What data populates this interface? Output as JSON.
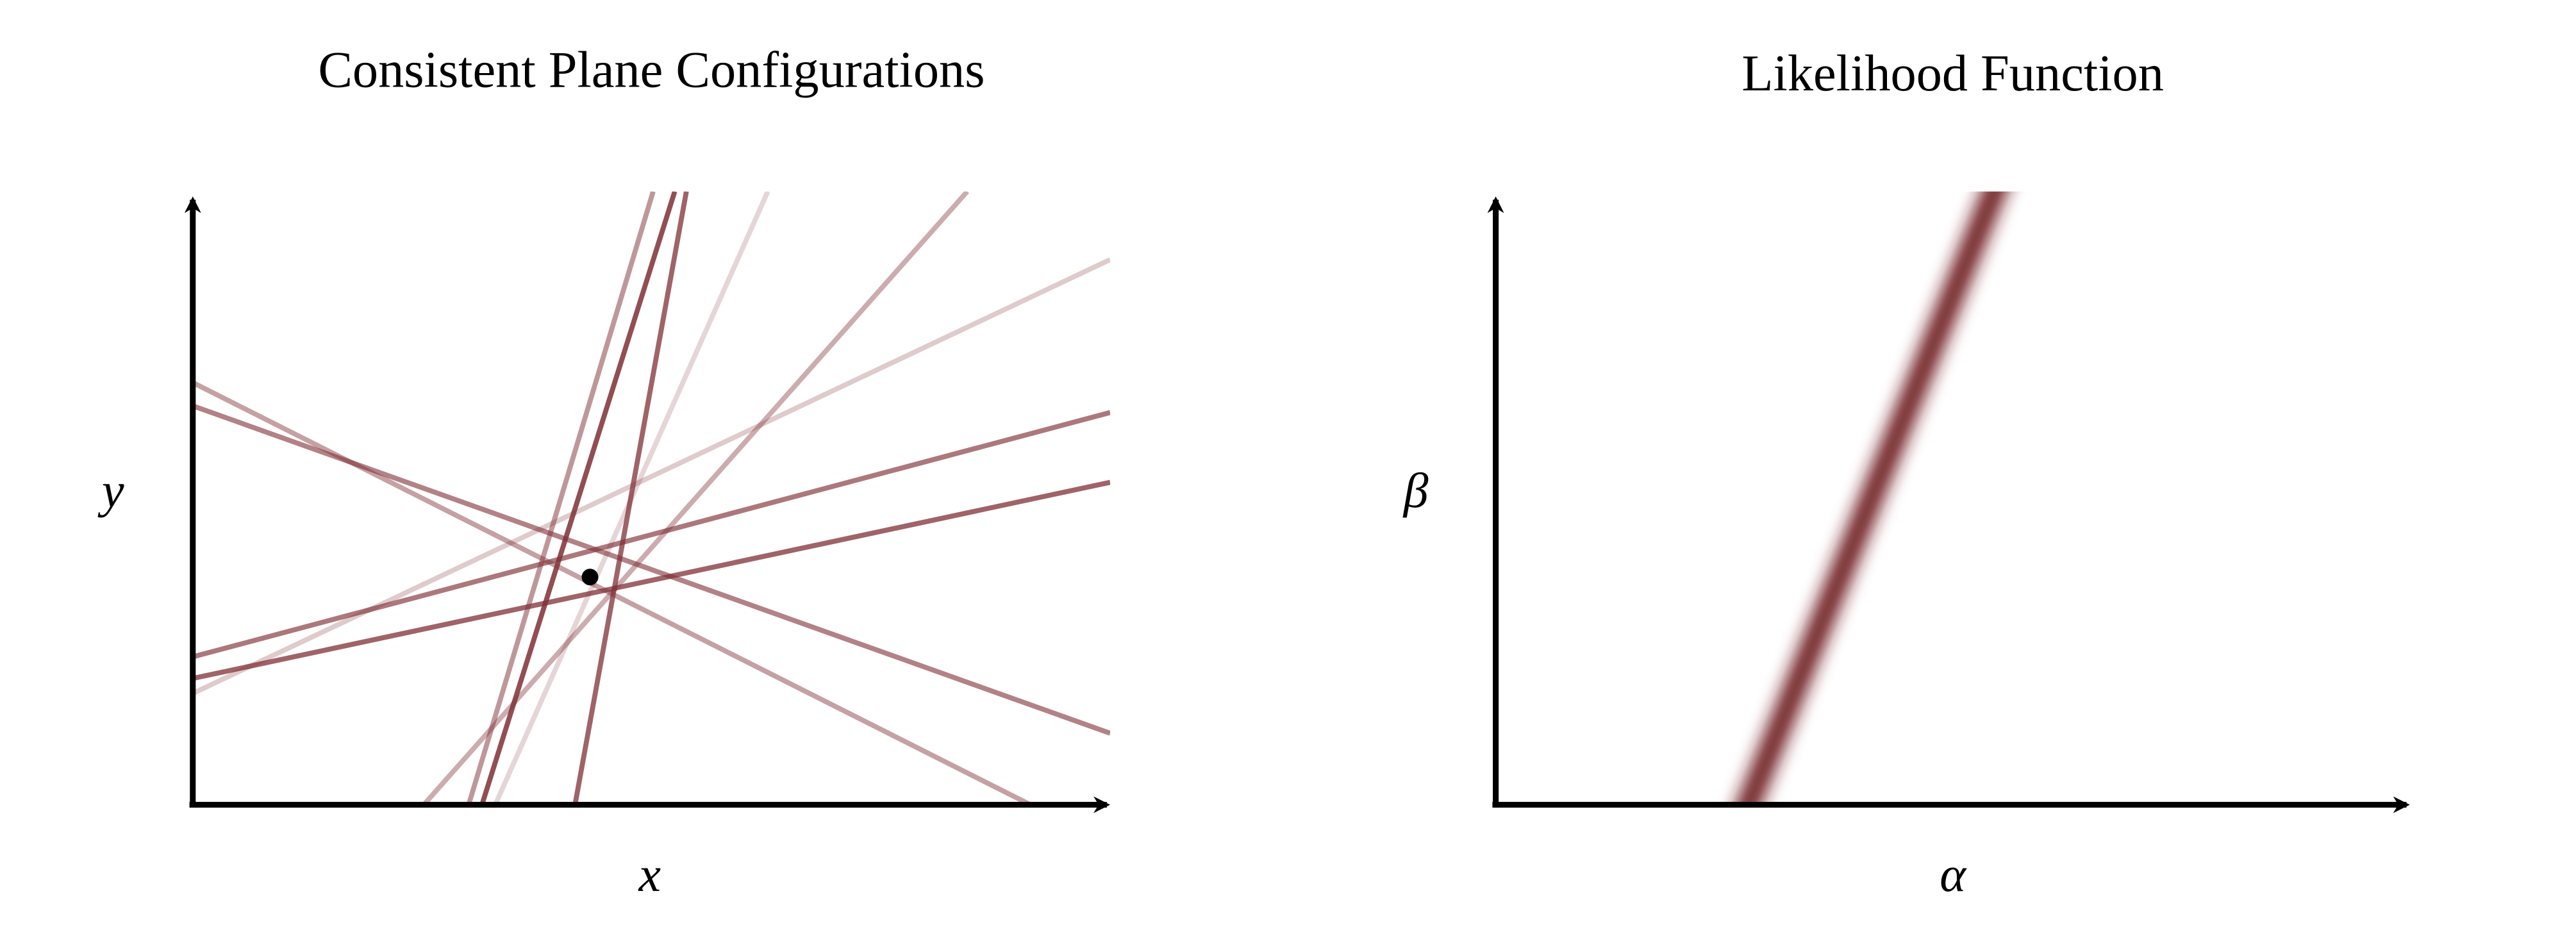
{
  "left_panel": {
    "title": "Consistent Plane Configurations",
    "x_label": "x",
    "y_label": "y"
  },
  "right_panel": {
    "title": "Likelihood Function",
    "x_label": "α",
    "y_label": "β"
  }
}
